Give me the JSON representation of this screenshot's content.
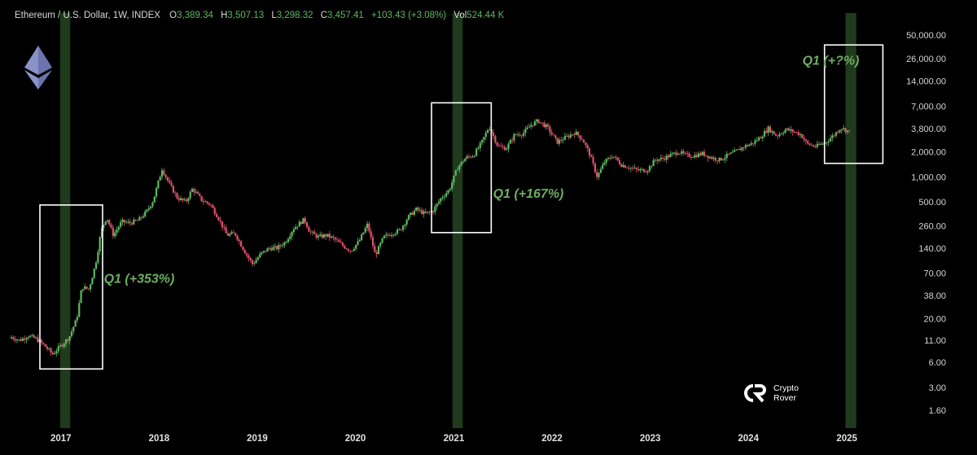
{
  "header": {
    "symbol": "Ethereum / U.S. Dollar, 1W, INDEX",
    "open_label": "O",
    "open": "3,389.34",
    "high_label": "H",
    "high": "3,507.13",
    "low_label": "L",
    "low": "3,298.32",
    "close_label": "C",
    "close": "3,457.41",
    "change": "+103.43 (+3.08%)",
    "vol_label": "Vol",
    "vol": "524.44 K"
  },
  "brand": {
    "line1": "Crypto",
    "line2": "Rover",
    "logo_icon": "crypto-rover-logo-icon"
  },
  "colors": {
    "up": "#5fb860",
    "down": "#e0526a",
    "highlight": "#1f3a1c",
    "annotation": "#6fae62",
    "box": "#ffffff"
  },
  "chart_data": {
    "type": "candlestick",
    "title": "Ethereum / U.S. Dollar, 1W, INDEX",
    "y_scale": "log",
    "ylim": [
      1.4,
      70000
    ],
    "xlim": [
      "2016-07-01",
      "2025-06-01"
    ],
    "y_ticks": [
      "50,000.00",
      "26,000.00",
      "14,000.00",
      "7,000.00",
      "3,800.00",
      "2,000.00",
      "1,000.00",
      "500.00",
      "260.00",
      "140.00",
      "70.00",
      "38.00",
      "20.00",
      "11.00",
      "6.00",
      "3.00",
      "1.60"
    ],
    "x_ticks": [
      {
        "label": "2017",
        "date": "2017-01-01"
      },
      {
        "label": "2018",
        "date": "2018-01-01"
      },
      {
        "label": "2019",
        "date": "2019-01-01"
      },
      {
        "label": "2020",
        "date": "2020-01-01"
      },
      {
        "label": "2021",
        "date": "2021-01-01"
      },
      {
        "label": "2022",
        "date": "2022-01-01"
      },
      {
        "label": "2023",
        "date": "2023-01-01"
      },
      {
        "label": "2024",
        "date": "2024-01-01"
      },
      {
        "label": "2025",
        "date": "2025-01-01"
      }
    ],
    "series": [
      {
        "values": [
          [
            "2016-07-01",
            12
          ],
          [
            "2016-08-01",
            11
          ],
          [
            "2016-09-01",
            12.5
          ],
          [
            "2016-10-01",
            11.5
          ],
          [
            "2016-11-01",
            9.5
          ],
          [
            "2016-12-01",
            7.5
          ],
          [
            "2017-01-01",
            9.5
          ],
          [
            "2017-02-01",
            12
          ],
          [
            "2017-03-01",
            20
          ],
          [
            "2017-03-20",
            48
          ],
          [
            "2017-04-15",
            45
          ],
          [
            "2017-05-10",
            90
          ],
          [
            "2017-05-31",
            230
          ],
          [
            "2017-06-20",
            330
          ],
          [
            "2017-07-15",
            200
          ],
          [
            "2017-08-15",
            290
          ],
          [
            "2017-09-15",
            280
          ],
          [
            "2017-10-15",
            300
          ],
          [
            "2017-11-15",
            380
          ],
          [
            "2017-12-10",
            520
          ],
          [
            "2018-01-12",
            1250
          ],
          [
            "2018-02-10",
            800
          ],
          [
            "2018-03-10",
            560
          ],
          [
            "2018-04-10",
            500
          ],
          [
            "2018-05-05",
            720
          ],
          [
            "2018-06-10",
            520
          ],
          [
            "2018-07-10",
            470
          ],
          [
            "2018-08-10",
            320
          ],
          [
            "2018-09-10",
            200
          ],
          [
            "2018-10-10",
            210
          ],
          [
            "2018-11-20",
            120
          ],
          [
            "2018-12-15",
            90
          ],
          [
            "2019-01-15",
            120
          ],
          [
            "2019-02-15",
            140
          ],
          [
            "2019-03-15",
            140
          ],
          [
            "2019-04-15",
            165
          ],
          [
            "2019-05-15",
            240
          ],
          [
            "2019-06-25",
            310
          ],
          [
            "2019-07-15",
            220
          ],
          [
            "2019-08-15",
            190
          ],
          [
            "2019-09-15",
            200
          ],
          [
            "2019-10-15",
            180
          ],
          [
            "2019-11-15",
            150
          ],
          [
            "2019-12-15",
            130
          ],
          [
            "2020-01-15",
            170
          ],
          [
            "2020-02-15",
            270
          ],
          [
            "2020-03-15",
            115
          ],
          [
            "2020-04-15",
            190
          ],
          [
            "2020-05-15",
            210
          ],
          [
            "2020-06-15",
            230
          ],
          [
            "2020-07-15",
            330
          ],
          [
            "2020-08-15",
            410
          ],
          [
            "2020-09-15",
            360
          ],
          [
            "2020-10-15",
            390
          ],
          [
            "2020-11-15",
            560
          ],
          [
            "2020-12-15",
            700
          ],
          [
            "2021-01-15",
            1300
          ],
          [
            "2021-02-15",
            1700
          ],
          [
            "2021-03-15",
            1800
          ],
          [
            "2021-04-15",
            2600
          ],
          [
            "2021-05-12",
            4000
          ],
          [
            "2021-06-15",
            2300
          ],
          [
            "2021-07-15",
            2200
          ],
          [
            "2021-08-15",
            3200
          ],
          [
            "2021-09-15",
            3300
          ],
          [
            "2021-10-15",
            4200
          ],
          [
            "2021-11-10",
            4700
          ],
          [
            "2021-12-15",
            3900
          ],
          [
            "2022-01-20",
            2600
          ],
          [
            "2022-02-15",
            2900
          ],
          [
            "2022-03-28",
            3400
          ],
          [
            "2022-04-25",
            2800
          ],
          [
            "2022-05-20",
            1900
          ],
          [
            "2022-06-18",
            1000
          ],
          [
            "2022-07-15",
            1500
          ],
          [
            "2022-08-15",
            1800
          ],
          [
            "2022-09-15",
            1400
          ],
          [
            "2022-10-15",
            1300
          ],
          [
            "2022-11-15",
            1200
          ],
          [
            "2022-12-20",
            1200
          ],
          [
            "2023-01-20",
            1600
          ],
          [
            "2023-02-15",
            1650
          ],
          [
            "2023-03-15",
            1800
          ],
          [
            "2023-04-15",
            2000
          ],
          [
            "2023-05-15",
            1800
          ],
          [
            "2023-06-15",
            1800
          ],
          [
            "2023-07-15",
            1900
          ],
          [
            "2023-08-15",
            1700
          ],
          [
            "2023-09-15",
            1600
          ],
          [
            "2023-10-15",
            1800
          ],
          [
            "2023-11-15",
            2000
          ],
          [
            "2023-12-15",
            2300
          ],
          [
            "2024-01-15",
            2500
          ],
          [
            "2024-02-15",
            3000
          ],
          [
            "2024-03-15",
            3800
          ],
          [
            "2024-04-15",
            3100
          ],
          [
            "2024-05-20",
            3700
          ],
          [
            "2024-06-15",
            3500
          ],
          [
            "2024-07-15",
            3200
          ],
          [
            "2024-08-05",
            2500
          ],
          [
            "2024-09-07",
            2300
          ],
          [
            "2024-10-15",
            2600
          ],
          [
            "2024-11-15",
            3200
          ],
          [
            "2024-12-10",
            3900
          ],
          [
            "2025-01-10",
            3450
          ]
        ]
      }
    ],
    "highlight_bands": [
      {
        "from": "2016-12-29",
        "to": "2017-02-05"
      },
      {
        "from": "2020-12-27",
        "to": "2021-02-03"
      },
      {
        "from": "2024-12-27",
        "to": "2025-02-05"
      }
    ],
    "boxes": [
      {
        "x0": "2016-10-15",
        "x1": "2017-06-05",
        "y0": 5,
        "y1": 460
      },
      {
        "x0": "2020-10-10",
        "x1": "2021-05-20",
        "y0": 215,
        "y1": 7700
      },
      {
        "x0": "2024-10-10",
        "x1": "2025-05-15",
        "y0": 1450,
        "y1": 38000
      }
    ],
    "annotations": [
      {
        "text": "Q1 (+353%)",
        "x": "2017-06-10",
        "y": 54
      },
      {
        "text": "Q1 (+167%)",
        "x": "2021-05-27",
        "y": 560
      },
      {
        "text": "Q1 (+?%)",
        "x": "2024-07-20",
        "y": 22000
      }
    ]
  }
}
